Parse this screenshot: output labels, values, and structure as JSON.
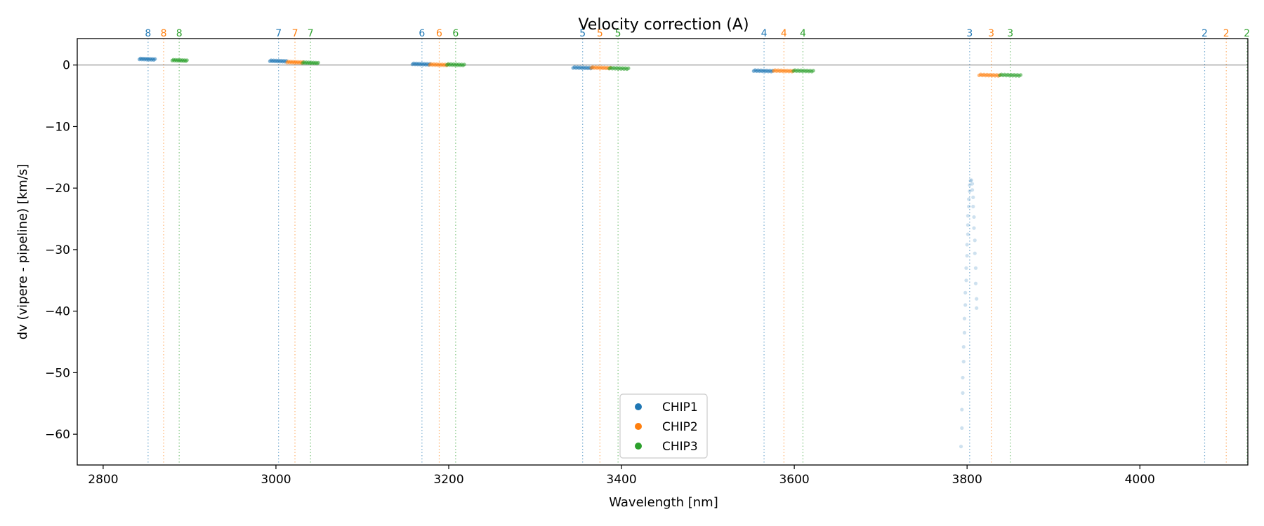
{
  "chart_data": {
    "type": "scatter",
    "title": "Velocity correction (A)",
    "xlabel": "Wavelength [nm]",
    "ylabel": "dv (vipere - pipeline) [km/s]",
    "xlim": [
      2770,
      4125
    ],
    "ylim": [
      -65,
      4.3
    ],
    "xticks": [
      2800,
      3000,
      3200,
      3400,
      3600,
      3800,
      4000
    ],
    "yticks": [
      0,
      -10,
      -20,
      -30,
      -40,
      -50,
      -60
    ],
    "ytick_labels": [
      "0",
      "−10",
      "−20",
      "−30",
      "−40",
      "−50",
      "−60"
    ],
    "zero_line": 0,
    "legend": {
      "location": "bottom-center",
      "entries": [
        "CHIP1",
        "CHIP2",
        "CHIP3"
      ]
    },
    "series": [
      {
        "name": "CHIP1",
        "color": "#1f77b4",
        "order_lines": [
          {
            "order": "8",
            "x": 2852
          },
          {
            "order": "7",
            "x": 3003
          },
          {
            "order": "6",
            "x": 3169
          },
          {
            "order": "5",
            "x": 3355
          },
          {
            "order": "4",
            "x": 3565
          },
          {
            "order": "3",
            "x": 3803
          },
          {
            "order": "2",
            "x": 4075
          }
        ],
        "segments": [
          {
            "x_start": 2842,
            "x_end": 2860,
            "y": 1.0
          },
          {
            "x_start": 2993,
            "x_end": 3012,
            "y": 0.7
          },
          {
            "x_start": 3158,
            "x_end": 3178,
            "y": 0.2
          },
          {
            "x_start": 3344,
            "x_end": 3366,
            "y": -0.4
          },
          {
            "x_start": 3553,
            "x_end": 3575,
            "y": -0.9
          }
        ],
        "outliers": [
          {
            "x": 3793,
            "y": -62.0
          },
          {
            "x": 3794,
            "y": -59.0
          },
          {
            "x": 3794,
            "y": -56.0
          },
          {
            "x": 3795,
            "y": -53.3
          },
          {
            "x": 3795,
            "y": -50.8
          },
          {
            "x": 3796,
            "y": -48.2
          },
          {
            "x": 3796,
            "y": -45.8
          },
          {
            "x": 3797,
            "y": -43.5
          },
          {
            "x": 3797,
            "y": -41.2
          },
          {
            "x": 3798,
            "y": -39.0
          },
          {
            "x": 3798,
            "y": -37.0
          },
          {
            "x": 3799,
            "y": -35.0
          },
          {
            "x": 3799,
            "y": -33.0
          },
          {
            "x": 3800,
            "y": -31.0
          },
          {
            "x": 3800,
            "y": -29.2
          },
          {
            "x": 3801,
            "y": -27.5
          },
          {
            "x": 3801,
            "y": -26.0
          },
          {
            "x": 3801,
            "y": -24.5
          },
          {
            "x": 3802,
            "y": -23.0
          },
          {
            "x": 3802,
            "y": -21.8
          },
          {
            "x": 3803,
            "y": -20.5
          },
          {
            "x": 3803,
            "y": -19.5
          },
          {
            "x": 3804,
            "y": -18.8
          },
          {
            "x": 3805,
            "y": -18.7
          },
          {
            "x": 3806,
            "y": -19.3
          },
          {
            "x": 3806,
            "y": -20.3
          },
          {
            "x": 3807,
            "y": -21.5
          },
          {
            "x": 3807,
            "y": -23.0
          },
          {
            "x": 3808,
            "y": -24.7
          },
          {
            "x": 3808,
            "y": -26.5
          },
          {
            "x": 3809,
            "y": -28.5
          },
          {
            "x": 3809,
            "y": -30.6
          },
          {
            "x": 3810,
            "y": -33.0
          },
          {
            "x": 3810,
            "y": -35.5
          },
          {
            "x": 3811,
            "y": -38.0
          },
          {
            "x": 3811,
            "y": -39.5
          }
        ]
      },
      {
        "name": "CHIP2",
        "color": "#ff7f0e",
        "order_lines": [
          {
            "order": "8",
            "x": 2870
          },
          {
            "order": "7",
            "x": 3022
          },
          {
            "order": "6",
            "x": 3189
          },
          {
            "order": "5",
            "x": 3375
          },
          {
            "order": "4",
            "x": 3588
          },
          {
            "order": "3",
            "x": 3828
          },
          {
            "order": "2",
            "x": 4100
          }
        ],
        "segments": [
          {
            "x_start": 3013,
            "x_end": 3031,
            "y": 0.5
          },
          {
            "x_start": 3178,
            "x_end": 3199,
            "y": 0.1
          },
          {
            "x_start": 3365,
            "x_end": 3387,
            "y": -0.4
          },
          {
            "x_start": 3576,
            "x_end": 3599,
            "y": -0.9
          },
          {
            "x_start": 3814,
            "x_end": 3838,
            "y": -1.6
          }
        ],
        "outliers": []
      },
      {
        "name": "CHIP3",
        "color": "#2ca02c",
        "order_lines": [
          {
            "order": "8",
            "x": 2888
          },
          {
            "order": "7",
            "x": 3040
          },
          {
            "order": "6",
            "x": 3208
          },
          {
            "order": "5",
            "x": 3396
          },
          {
            "order": "4",
            "x": 3610
          },
          {
            "order": "3",
            "x": 3850
          },
          {
            "order": "2",
            "x": 4124
          }
        ],
        "segments": [
          {
            "x_start": 2880,
            "x_end": 2897,
            "y": 0.8
          },
          {
            "x_start": 3031,
            "x_end": 3049,
            "y": 0.4
          },
          {
            "x_start": 3198,
            "x_end": 3218,
            "y": 0.1
          },
          {
            "x_start": 3386,
            "x_end": 3408,
            "y": -0.5
          },
          {
            "x_start": 3599,
            "x_end": 3622,
            "y": -0.9
          },
          {
            "x_start": 3838,
            "x_end": 3862,
            "y": -1.6
          }
        ],
        "outliers": []
      }
    ]
  }
}
